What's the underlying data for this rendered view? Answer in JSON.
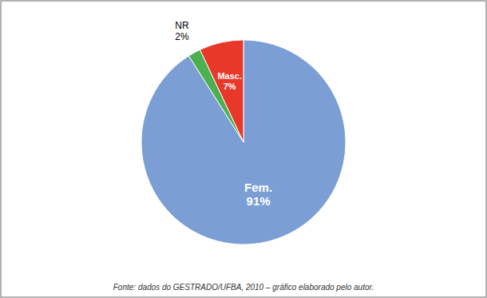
{
  "chart_data": {
    "type": "pie",
    "categories": [
      "Fem.",
      "NR",
      "Masc."
    ],
    "values": [
      91,
      2,
      7
    ],
    "value_labels": [
      "91%",
      "2%",
      "7%"
    ],
    "colors": [
      "#7B9FD4",
      "#4CAF50",
      "#E8382A"
    ],
    "data_labels": true,
    "footer": "Fonte: dados do GESTRADO/UFBA, 2010 – gráfico elaborado pelo autor."
  }
}
